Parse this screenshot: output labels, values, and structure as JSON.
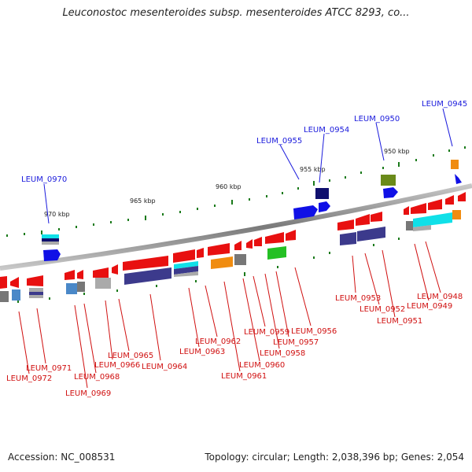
{
  "title": "Leuconostoc mesenteroides subsp. mesenteroides ATCC 8293, co...",
  "footer": {
    "accession": "Accession: NC_008531",
    "summary": "Topology: circular; Length: 2,038,396 bp; Genes: 2,054"
  },
  "scale_labels": [
    "970 kbp",
    "965 kbp",
    "960 kbp",
    "955 kbp",
    "950 kbp"
  ],
  "upper_gene_labels": [
    "LEUM_0970",
    "LEUM_0955",
    "LEUM_0954",
    "LEUM_0950",
    "LEUM_0945"
  ],
  "lower_gene_labels": [
    "LEUM_0972",
    "LEUM_0971",
    "LEUM_0969",
    "LEUM_0968",
    "LEUM_0966",
    "LEUM_0965",
    "LEUM_0964",
    "LEUM_0963",
    "LEUM_0962",
    "LEUM_0961",
    "LEUM_0960",
    "LEUM_0959",
    "LEUM_0958",
    "LEUM_0957",
    "LEUM_0956",
    "LEUM_0953",
    "LEUM_0952",
    "LEUM_0951",
    "LEUM_0949",
    "LEUM_0948"
  ],
  "colors": {
    "cds": "#e81010",
    "label_blue": "#1a1adc",
    "label_red": "#d01010",
    "backbone": "#888888",
    "tick": "#1a7a1a",
    "purple": "#3c3a8c",
    "blue": "#1010e6",
    "navy": "#10106e",
    "orange": "#f08c10",
    "cyan": "#10e0e8",
    "green": "#24c024",
    "olive": "#6a8a1a",
    "grey": "#777777",
    "steel": "#4a88c8"
  }
}
